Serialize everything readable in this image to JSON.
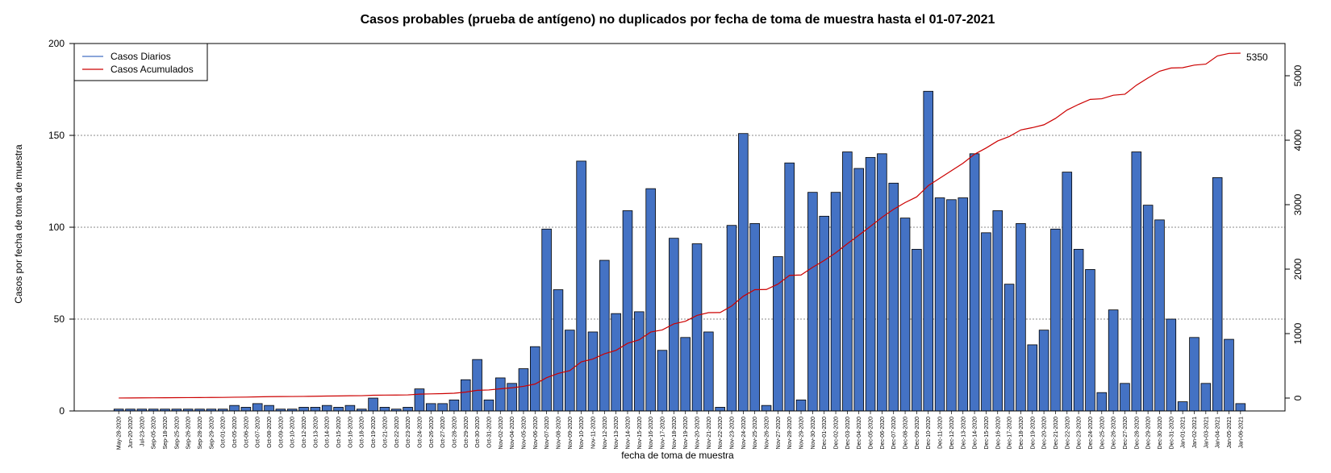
{
  "chart_data": {
    "type": "bar",
    "title": "Casos probables (prueba de antígeno) no duplicados por fecha de toma de muestra hasta el 01-07-2021",
    "xlabel": "fecha de toma de muestra",
    "ylabel": "Casos por fecha de toma de muestra",
    "ylim": [
      0,
      200
    ],
    "yticks": [
      0,
      50,
      100,
      150,
      200
    ],
    "y2lim": [
      -200,
      5500
    ],
    "y2ticks": [
      0,
      1000,
      2000,
      3000,
      4000,
      5000
    ],
    "grid": "horizontal dotted",
    "legend_position": "top-left",
    "final_label": "5350",
    "colors": {
      "bars": "#4472c4",
      "bar_border": "#000000",
      "cumulative": "#cc0000",
      "daily": "#4472c4",
      "grid": "#888888"
    },
    "categories": [
      "May-28-2020",
      "Jun-20-2020",
      "Jul-23-2020",
      "Sep-05-2020",
      "Sep-18-2020",
      "Sep-25-2020",
      "Sep-26-2020",
      "Sep-28-2020",
      "Sep-29-2020",
      "Oct-01-2020",
      "Oct-05-2020",
      "Oct-06-2020",
      "Oct-07-2020",
      "Oct-08-2020",
      "Oct-09-2020",
      "Oct-10-2020",
      "Oct-12-2020",
      "Oct-13-2020",
      "Oct-14-2020",
      "Oct-15-2020",
      "Oct-16-2020",
      "Oct-18-2020",
      "Oct-19-2020",
      "Oct-21-2020",
      "Oct-22-2020",
      "Oct-23-2020",
      "Oct-24-2020",
      "Oct-26-2020",
      "Oct-27-2020",
      "Oct-28-2020",
      "Oct-29-2020",
      "Oct-30-2020",
      "Oct-31-2020",
      "Nov-02-2020",
      "Nov-04-2020",
      "Nov-05-2020",
      "Nov-06-2020",
      "Nov-07-2020",
      "Nov-08-2020",
      "Nov-09-2020",
      "Nov-10-2020",
      "Nov-11-2020",
      "Nov-12-2020",
      "Nov-13-2020",
      "Nov-14-2020",
      "Nov-15-2020",
      "Nov-16-2020",
      "Nov-17-2020",
      "Nov-18-2020",
      "Nov-19-2020",
      "Nov-20-2020",
      "Nov-21-2020",
      "Nov-22-2020",
      "Nov-23-2020",
      "Nov-24-2020",
      "Nov-25-2020",
      "Nov-26-2020",
      "Nov-27-2020",
      "Nov-28-2020",
      "Nov-29-2020",
      "Nov-30-2020",
      "Dec-01-2020",
      "Dec-02-2020",
      "Dec-03-2020",
      "Dec-04-2020",
      "Dec-05-2020",
      "Dec-06-2020",
      "Dec-07-2020",
      "Dec-08-2020",
      "Dec-09-2020",
      "Dec-10-2020",
      "Dec-11-2020",
      "Dec-12-2020",
      "Dec-13-2020",
      "Dec-14-2020",
      "Dec-15-2020",
      "Dec-16-2020",
      "Dec-17-2020",
      "Dec-18-2020",
      "Dec-19-2020",
      "Dec-20-2020",
      "Dec-21-2020",
      "Dec-22-2020",
      "Dec-23-2020",
      "Dec-24-2020",
      "Dec-25-2020",
      "Dec-26-2020",
      "Dec-27-2020",
      "Dec-28-2020",
      "Dec-29-2020",
      "Dec-30-2020",
      "Dec-31-2020",
      "Jan-01-2021",
      "Jan-02-2021",
      "Jan-03-2021",
      "Jan-04-2021",
      "Jan-05-2021",
      "Jan-06-2021"
    ],
    "series": [
      {
        "name": "Casos Diarios",
        "axis": "left",
        "values": [
          1,
          1,
          1,
          1,
          1,
          1,
          1,
          1,
          1,
          1,
          3,
          2,
          4,
          3,
          1,
          1,
          2,
          2,
          3,
          2,
          3,
          1,
          7,
          2,
          1,
          2,
          12,
          4,
          4,
          6,
          17,
          28,
          6,
          18,
          15,
          23,
          35,
          99,
          66,
          44,
          136,
          43,
          82,
          53,
          109,
          54,
          121,
          33,
          94,
          40,
          91,
          43,
          2,
          101,
          151,
          102,
          3,
          84,
          135,
          6,
          119,
          106,
          119,
          141,
          132,
          138,
          140,
          124,
          105,
          88,
          174,
          116,
          115,
          116,
          140,
          97,
          109,
          69,
          102,
          36,
          44,
          99,
          130,
          88,
          77,
          10,
          55,
          15,
          141,
          112,
          104,
          50,
          5,
          40,
          15,
          127,
          39,
          4
        ]
      },
      {
        "name": "Casos Acumulados",
        "axis": "right",
        "values": [
          1,
          2,
          3,
          4,
          5,
          6,
          7,
          8,
          9,
          10,
          13,
          15,
          19,
          22,
          23,
          24,
          26,
          28,
          31,
          33,
          36,
          37,
          44,
          46,
          47,
          49,
          61,
          65,
          69,
          75,
          92,
          120,
          126,
          144,
          159,
          182,
          217,
          316,
          382,
          426,
          562,
          605,
          687,
          740,
          849,
          903,
          1024,
          1057,
          1151,
          1191,
          1282,
          1325,
          1327,
          1428,
          1579,
          1681,
          1684,
          1768,
          1903,
          1909,
          2028,
          2134,
          2253,
          2394,
          2526,
          2664,
          2804,
          2928,
          3033,
          3121,
          3295,
          3411,
          3526,
          3642,
          3782,
          3879,
          3988,
          4057,
          4159,
          4195,
          4239,
          4338,
          4468,
          4556,
          4633,
          4643,
          4698,
          4713,
          4854,
          4966,
          5070,
          5120,
          5125,
          5165,
          5180,
          5307,
          5346,
          5350
        ]
      }
    ]
  }
}
